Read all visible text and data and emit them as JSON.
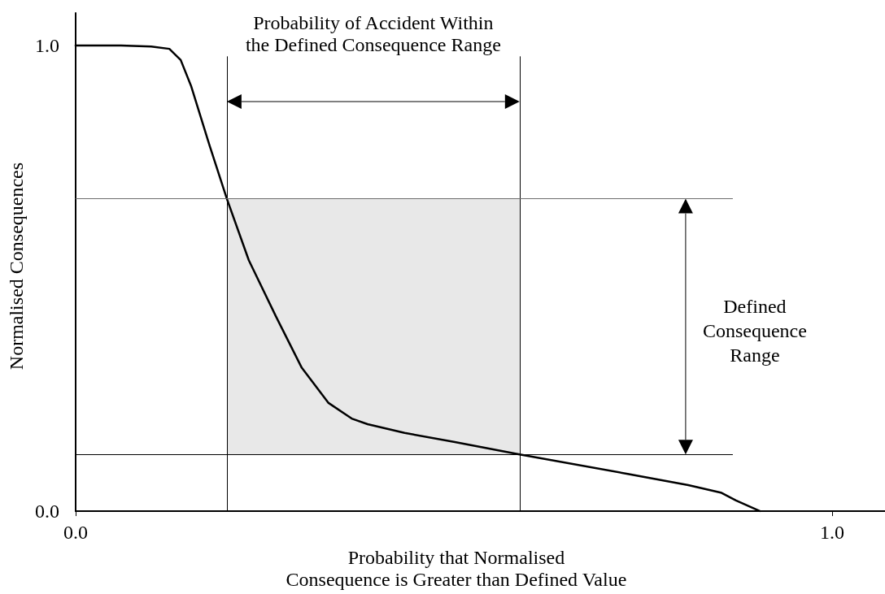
{
  "chart_data": {
    "type": "line",
    "xlabel": "Probability that Normalised\nConsequence is Greater than Defined Value",
    "ylabel": "Normalised Consequences",
    "annotations": [
      "Probability of Accident Within\nthe Defined Consequence Range",
      "Defined\nConsequence\nRange"
    ],
    "x": [
      0,
      0.06,
      0.1,
      0.124,
      0.139,
      0.153,
      0.177,
      0.2,
      0.229,
      0.265,
      0.299,
      0.334,
      0.365,
      0.386,
      0.435,
      0.5,
      0.587,
      0.73,
      0.81,
      0.853,
      0.873,
      0.905
    ],
    "series": [
      {
        "color": "#000000",
        "values": [
          1.0,
          1.0,
          0.998,
          0.993,
          0.969,
          0.912,
          0.786,
          0.671,
          0.539,
          0.418,
          0.308,
          0.233,
          0.199,
          0.187,
          0.168,
          0.149,
          0.122,
          0.08,
          0.056,
          0.04,
          0.023,
          0
        ]
      }
    ],
    "xlim": [
      0,
      1.07
    ],
    "ylim": [
      0,
      1.07
    ],
    "xticks": [
      {
        "value": 0,
        "label": "0.0"
      },
      {
        "value": 1,
        "label": "1.0"
      }
    ],
    "yticks": [
      {
        "value": 0,
        "label": "0.0"
      },
      {
        "value": 1,
        "label": "1.0"
      }
    ],
    "ref_lines": [
      {
        "axis": "x",
        "value": 0.2,
        "color": "#000000"
      },
      {
        "axis": "x",
        "value": 0.587,
        "color": "#000000"
      },
      {
        "axis": "y",
        "value": 0.671,
        "color": "#6e6e6e"
      },
      {
        "axis": "y",
        "value": 0.122,
        "color": "#000000"
      }
    ],
    "bands": [
      {
        "axis": "x",
        "from": 0.2,
        "to": 0.587,
        "color": "#e8e8e8"
      }
    ],
    "marker": "none",
    "line_style": "solid",
    "grid": false
  }
}
